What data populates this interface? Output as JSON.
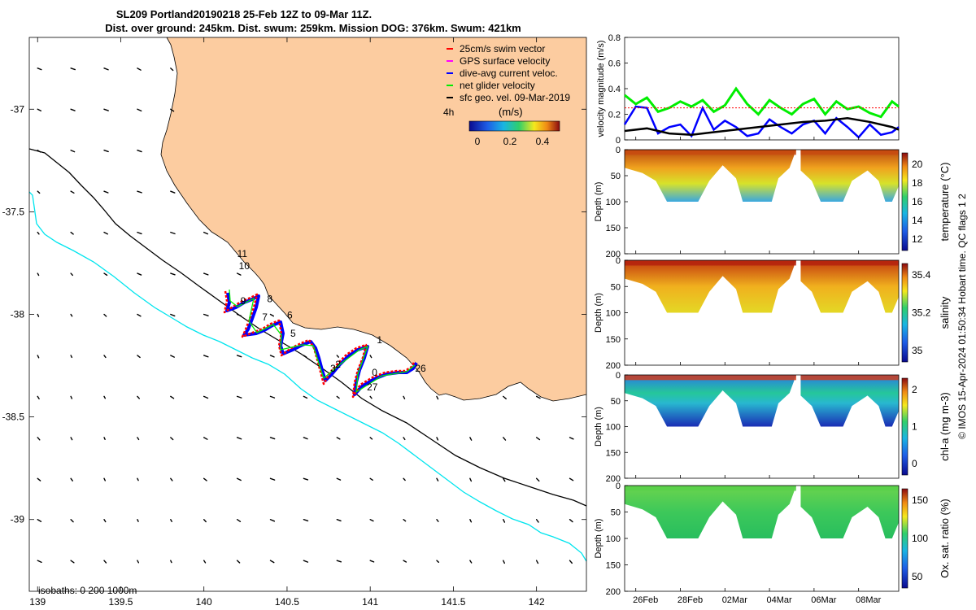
{
  "title": {
    "line1": "SL209 Portland20190218 25-Feb 12Z to 09-Mar 11Z.",
    "line2": "Dist. over ground: 245km. Dist. swum: 259km. Mission DOG: 376km. Swum: 421km"
  },
  "colors": {
    "land": "#FCCCA0",
    "isobath_200": "#000000",
    "isobath_1000": "#00E5EE",
    "track_red": "#FF0000",
    "track_blue": "#0000FF",
    "track_green": "#00EE00",
    "track_black": "#000000",
    "threshold_line": "#FF0000"
  },
  "map": {
    "xlim": [
      138.95,
      142.3
    ],
    "ylim": [
      -39.35,
      -36.65
    ],
    "xticks": [
      "139",
      "139.5",
      "140",
      "140.5",
      "141",
      "141.5",
      "142"
    ],
    "yticks": [
      "-37",
      "-37.5",
      "-38",
      "-38.5",
      "-39"
    ],
    "legend": [
      {
        "label": "25cm/s swim vector",
        "color": "#FF0000"
      },
      {
        "label": "GPS surface velocity",
        "color": "#FF00FF"
      },
      {
        "label": "dive-avg current veloc.",
        "color": "#0000FF"
      },
      {
        "label": "net glider velocity",
        "color": "#00EE00"
      },
      {
        "label": "sfc geo. vel. 09-Mar-2019",
        "color": "#000000"
      }
    ],
    "colorbar": {
      "label": "(m/s)",
      "ticks": [
        "0",
        "0.2",
        "0.4"
      ],
      "side_label": "4h"
    },
    "day_labels": [
      {
        "text": "11",
        "lon": 140.2,
        "lat": -37.72
      },
      {
        "text": "10",
        "lon": 140.21,
        "lat": -37.78
      },
      {
        "text": "9",
        "lon": 140.22,
        "lat": -37.95
      },
      {
        "text": "8",
        "lon": 140.38,
        "lat": -37.94
      },
      {
        "text": "7",
        "lon": 140.35,
        "lat": -38.03
      },
      {
        "text": "6",
        "lon": 140.5,
        "lat": -38.02
      },
      {
        "text": "5",
        "lon": 140.52,
        "lat": -38.11
      },
      {
        "text": "3",
        "lon": 140.76,
        "lat": -38.28
      },
      {
        "text": "2",
        "lon": 140.79,
        "lat": -38.26
      },
      {
        "text": "1",
        "lon": 141.04,
        "lat": -38.14
      },
      {
        "text": "0",
        "lon": 141.01,
        "lat": -38.3
      },
      {
        "text": "27",
        "lon": 140.98,
        "lat": -38.37
      },
      {
        "text": "26",
        "lon": 141.27,
        "lat": -38.28
      }
    ],
    "isobath_label": "isobaths: 0   200  1000m"
  },
  "panels": {
    "xticks": [
      "26Feb",
      "28Feb",
      "02Mar",
      "04Mar",
      "06Mar",
      "08Mar"
    ],
    "velocity": {
      "ylabel": "velocity magnitude (m/s)",
      "yticks": [
        "0",
        "0.2",
        "0.4",
        "0.6",
        "0.8"
      ],
      "ylim": [
        0,
        0.8
      ]
    },
    "temperature": {
      "ylabel": "Depth (m)",
      "cbar_label": "temperature (°C)",
      "cbar_ticks": [
        "12",
        "14",
        "16",
        "18",
        "20"
      ]
    },
    "salinity": {
      "ylabel": "Depth (m)",
      "cbar_label": "salinity",
      "cbar_ticks": [
        "35",
        "35.2",
        "35.4"
      ]
    },
    "chla": {
      "ylabel": "Depth (m)",
      "cbar_label": "chl-a (mg m-3)",
      "cbar_ticks": [
        "0",
        "1",
        "2"
      ]
    },
    "oxygen": {
      "ylabel": "Depth (m)",
      "cbar_label": "Ox. sat. ratio (%)",
      "cbar_ticks": [
        "50",
        "100",
        "150"
      ]
    },
    "depth_ticks": [
      "0",
      "50",
      "100",
      "150",
      "200"
    ]
  },
  "footer": "© IMOS 15-Apr-2024 01:50:34 Hobart time. QC flags 1  2",
  "chart_data": [
    {
      "type": "line",
      "title": "velocity magnitude",
      "x_unit": "days since 25-Feb 12Z",
      "xlim": [
        0,
        12.3
      ],
      "ylim": [
        0,
        0.8
      ],
      "ylabel": "velocity magnitude (m/s)",
      "series": [
        {
          "name": "net glider velocity",
          "color": "#00EE00",
          "x": [
            0,
            0.5,
            1,
            1.5,
            2,
            2.5,
            3,
            3.5,
            4,
            4.5,
            5,
            5.5,
            6,
            6.5,
            7,
            7.5,
            8,
            8.5,
            9,
            9.5,
            10,
            10.5,
            11,
            11.5,
            12,
            12.3
          ],
          "values": [
            0.35,
            0.28,
            0.33,
            0.22,
            0.25,
            0.3,
            0.26,
            0.31,
            0.22,
            0.27,
            0.4,
            0.28,
            0.2,
            0.31,
            0.25,
            0.2,
            0.28,
            0.32,
            0.2,
            0.3,
            0.24,
            0.26,
            0.21,
            0.18,
            0.3,
            0.26
          ]
        },
        {
          "name": "dive-avg current veloc.",
          "color": "#0000FF",
          "x": [
            0,
            0.5,
            1,
            1.5,
            2,
            2.5,
            3,
            3.5,
            4,
            4.5,
            5,
            5.5,
            6,
            6.5,
            7,
            7.5,
            8,
            8.5,
            9,
            9.5,
            10,
            10.5,
            11,
            11.5,
            12,
            12.3
          ],
          "values": [
            0.12,
            0.26,
            0.25,
            0.05,
            0.1,
            0.12,
            0.03,
            0.25,
            0.08,
            0.15,
            0.1,
            0.03,
            0.05,
            0.16,
            0.1,
            0.05,
            0.12,
            0.15,
            0.05,
            0.17,
            0.1,
            0.02,
            0.12,
            0.04,
            0.06,
            0.1
          ]
        },
        {
          "name": "sfc geo. vel.",
          "color": "#000000",
          "x": [
            0,
            1,
            2,
            3,
            4,
            5,
            6,
            7,
            8,
            9,
            10,
            11,
            12,
            12.3
          ],
          "values": [
            0.07,
            0.09,
            0.05,
            0.04,
            0.06,
            0.08,
            0.1,
            0.12,
            0.14,
            0.15,
            0.17,
            0.14,
            0.1,
            0.08
          ]
        },
        {
          "name": "25cm/s threshold",
          "color": "#FF0000",
          "x": [
            0,
            12.3
          ],
          "values": [
            0.25,
            0.25
          ]
        }
      ]
    },
    {
      "type": "heatmap",
      "title": "temperature",
      "ylabel": "Depth (m)",
      "ylim": [
        200,
        0
      ],
      "clim": [
        11,
        20
      ],
      "cbar_label": "temperature (°C)"
    },
    {
      "type": "heatmap",
      "title": "salinity",
      "ylabel": "Depth (m)",
      "ylim": [
        200,
        0
      ],
      "clim": [
        34.9,
        35.5
      ],
      "cbar_label": "salinity"
    },
    {
      "type": "heatmap",
      "title": "chl-a",
      "ylabel": "Depth (m)",
      "ylim": [
        200,
        0
      ],
      "clim": [
        0,
        2
      ],
      "cbar_label": "chl-a (mg m-3)"
    },
    {
      "type": "heatmap",
      "title": "oxygen saturation",
      "ylabel": "Depth (m)",
      "ylim": [
        200,
        0
      ],
      "clim": [
        30,
        170
      ],
      "cbar_label": "Ox. sat. ratio (%)"
    }
  ]
}
